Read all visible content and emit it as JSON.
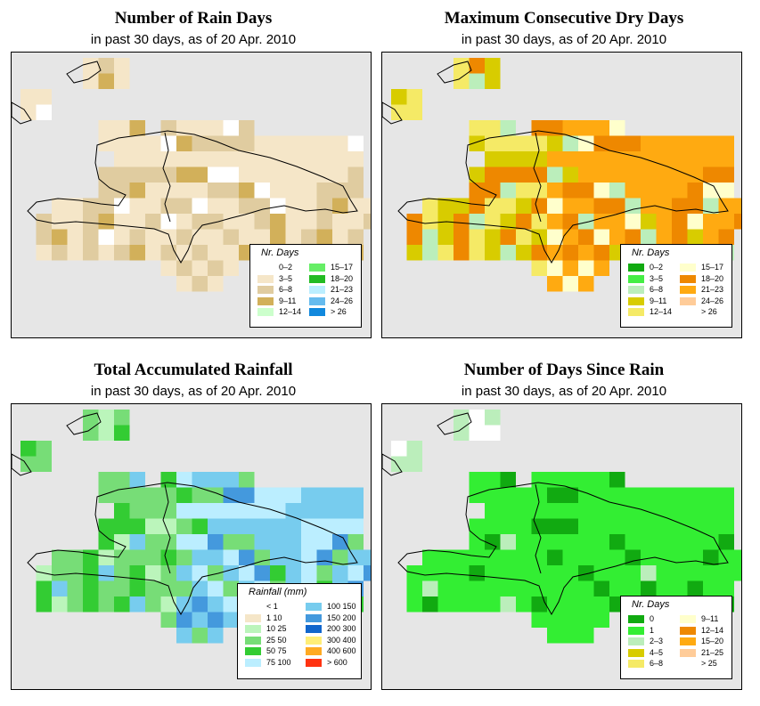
{
  "panels": [
    {
      "title": "Number of Rain Days",
      "subtitle": "in past 30 days, as of  20 Apr. 2010",
      "legend": {
        "title": "Nr. Days",
        "items": [
          {
            "label": "0–2",
            "color": "#ffffff"
          },
          {
            "label": "3–5",
            "color": "#f5e6c8"
          },
          {
            "label": "6–8",
            "color": "#e0cca0"
          },
          {
            "label": "9–11",
            "color": "#d2b05a"
          },
          {
            "label": "12–14",
            "color": "#ccffcc"
          },
          {
            "label": "15–17",
            "color": "#66ee66"
          },
          {
            "label": "18–20",
            "color": "#22bb22"
          },
          {
            "label": "21–23",
            "color": "#bbeeff"
          },
          {
            "label": "24–26",
            "color": "#66bbee"
          },
          {
            "label": "> 26",
            "color": "#1188dd"
          }
        ]
      }
    },
    {
      "title": "Maximum Consecutive Dry Days",
      "subtitle": "in past 30 days, as of  20 Apr. 2010",
      "legend": {
        "title": "Nr. Days",
        "items": [
          {
            "label": "0–2",
            "color": "#11aa11"
          },
          {
            "label": "3–5",
            "color": "#44ee44"
          },
          {
            "label": "6–8",
            "color": "#bbeebb"
          },
          {
            "label": "9–11",
            "color": "#d8cc00"
          },
          {
            "label": "12–14",
            "color": "#f5ea66"
          },
          {
            "label": "15–17",
            "color": "#ffffcc"
          },
          {
            "label": "18–20",
            "color": "#ee8800"
          },
          {
            "label": "21–23",
            "color": "#ffaa11"
          },
          {
            "label": "24–26",
            "color": "#ffcc99"
          },
          {
            "label": "> 26",
            "color": "#ffffff"
          }
        ]
      }
    },
    {
      "title": "Total Accumulated Rainfall",
      "subtitle": "in past 30 days, as of  20 Apr. 2010",
      "legend": {
        "title": "Rainfall (mm)",
        "items": [
          {
            "label": "< 1",
            "color": "#ffffff"
          },
          {
            "label": "1    10",
            "color": "#f5e6c8"
          },
          {
            "label": "10    25",
            "color": "#bbf5bb"
          },
          {
            "label": "25    50",
            "color": "#77dd77"
          },
          {
            "label": "50    75",
            "color": "#33cc33"
          },
          {
            "label": "75  100",
            "color": "#bbeeff"
          },
          {
            "label": "100  150",
            "color": "#77ccee"
          },
          {
            "label": "150  200",
            "color": "#4499dd"
          },
          {
            "label": "200  300",
            "color": "#1166cc"
          },
          {
            "label": "300  400",
            "color": "#ffee77"
          },
          {
            "label": "400  600",
            "color": "#ffaa22"
          },
          {
            "label": "> 600",
            "color": "#ff3311"
          }
        ]
      }
    },
    {
      "title": "Number of Days Since Rain",
      "subtitle": "in past 30 days, as of  20 Apr. 2010",
      "legend": {
        "title": "Nr. Days",
        "items": [
          {
            "label": "0",
            "color": "#11aa11"
          },
          {
            "label": "1",
            "color": "#33ee33"
          },
          {
            "label": "2–3",
            "color": "#bbeebb"
          },
          {
            "label": "4–5",
            "color": "#d8cc00"
          },
          {
            "label": "6–8",
            "color": "#f5ea66"
          },
          {
            "label": "9–11",
            "color": "#ffffcc"
          },
          {
            "label": "12–14",
            "color": "#ee8800"
          },
          {
            "label": "15–20",
            "color": "#ffaa11"
          },
          {
            "label": "21–25",
            "color": "#ffcc99"
          },
          {
            "label": "> 25",
            "color": "#ffffff"
          }
        ]
      }
    }
  ]
}
